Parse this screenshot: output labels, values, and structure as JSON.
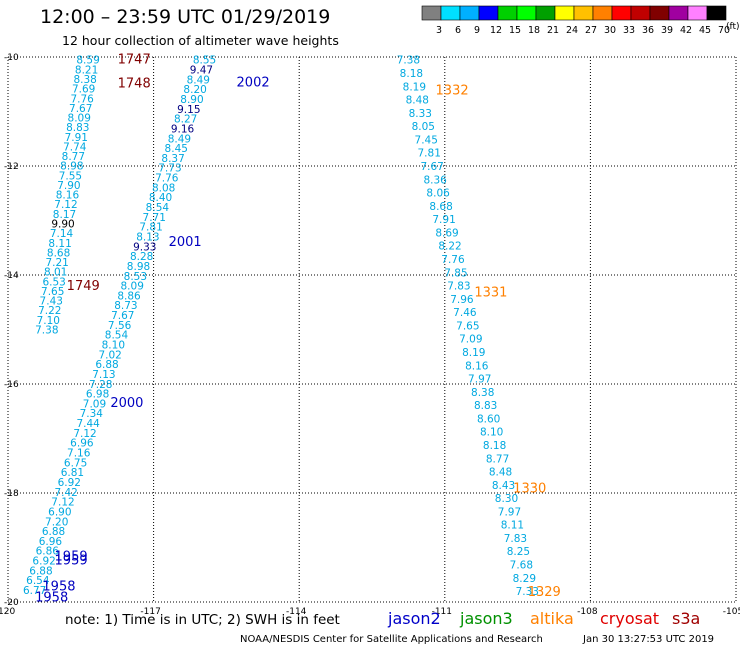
{
  "header": {
    "title": "12:00 – 23:59 UTC 01/29/2019",
    "subtitle": "12 hour collection of altimeter wave heights"
  },
  "legend": {
    "labels": [
      "3",
      "6",
      "9",
      "12",
      "15",
      "18",
      "21",
      "24",
      "27",
      "30",
      "33",
      "36",
      "39",
      "42",
      "45",
      "70"
    ],
    "unit": "(ft)",
    "colors": [
      "#808080",
      "#00e0ff",
      "#00b0ff",
      "#0000ff",
      "#00d000",
      "#00ff00",
      "#00a000",
      "#ffff00",
      "#ffc000",
      "#ff8000",
      "#ff0000",
      "#c00000",
      "#800000",
      "#a000a0",
      "#ff80ff",
      "#000000"
    ]
  },
  "note": "note:  1) Time is in UTC;  2) SWH is in feet",
  "satellites": [
    {
      "name": "jason2",
      "color": "#0000c8"
    },
    {
      "name": "jason3",
      "color": "#009000"
    },
    {
      "name": "altika",
      "color": "#ff8000"
    },
    {
      "name": "cryosat",
      "color": "#e00000"
    },
    {
      "name": "s3a",
      "color": "#a00000"
    }
  ],
  "footer": {
    "credit": "NOAA/NESDIS Center for Satellite Applications and Research",
    "timestamp": "Jan 30 13:27:53 UTC 2019"
  },
  "chart_data": {
    "type": "scatter",
    "xlim": [
      -120,
      -105
    ],
    "ylim": [
      -20,
      -10
    ],
    "x_ticks": [
      -120,
      -117,
      -114,
      -111,
      -108,
      -105
    ],
    "y_ticks": [
      -10,
      -12,
      -14,
      -16,
      -18,
      -20
    ],
    "x_tick_labels": [
      "-120",
      "-117",
      "-114",
      "-111",
      "-108",
      "-105"
    ],
    "y_tick_labels": [
      "-10",
      "-12",
      "-14",
      "-16",
      "-18",
      "-20"
    ],
    "grid": true,
    "tracks": [
      {
        "satellite": "jason2",
        "color": "#00a8e0",
        "x_start": -118.35,
        "y_start": -10.05,
        "x_end": -119.2,
        "y_end": -15.0,
        "values": [
          "8.59",
          "8.21",
          "8.38",
          "7.69",
          "7.76",
          "7.67",
          "8.09",
          "8.83",
          "7.91",
          "7.74",
          "8.77",
          "8.98",
          "7.55",
          "7.90",
          "8.16",
          "7.12",
          "8.17",
          "9.90",
          "7.14",
          "8.11",
          "8.68",
          "7.21",
          "8.01",
          "6.53",
          "7.65",
          "7.43",
          "7.22",
          "7.10",
          "7.38"
        ]
      },
      {
        "satellite": "jason2",
        "color": "#00a8e0",
        "x_start": -115.95,
        "y_start": -10.05,
        "x_end": -119.45,
        "y_end": -19.78,
        "values": [
          "8.55",
          "9.47",
          "8.49",
          "8.20",
          "8.90",
          "9.15",
          "8.27",
          "9.16",
          "8.49",
          "8.45",
          "8.37",
          "7.73",
          "7.76",
          "8.08",
          "8.40",
          "8.54",
          "7.71",
          "7.81",
          "8.13",
          "9.33",
          "8.28",
          "8.98",
          "8.53",
          "8.09",
          "8.86",
          "8.73",
          "7.67",
          "7.56",
          "8.54",
          "8.10",
          "7.02",
          "6.88",
          "7.13",
          "7.28",
          "6.98",
          "7.09",
          "7.34",
          "7.44",
          "7.12",
          "6.96",
          "7.16",
          "6.75",
          "6.81",
          "6.92",
          "7.42",
          "7.12",
          "6.90",
          "7.20",
          "6.88",
          "6.96",
          "6.86",
          "6.92",
          "6.88",
          "6.54",
          "6.77"
        ]
      },
      {
        "satellite": "jason2",
        "color": "#00a8e0",
        "x_start": -111.75,
        "y_start": -10.05,
        "x_end": -109.3,
        "y_end": -19.8,
        "values": [
          "7.38",
          "8.18",
          "8.19",
          "8.48",
          "8.33",
          "8.05",
          "7.45",
          "7.81",
          "7.67",
          "8.36",
          "8.06",
          "8.68",
          "7.91",
          "8.69",
          "8.22",
          "7.76",
          "7.85",
          "7.83",
          "7.96",
          "7.46",
          "7.65",
          "7.09",
          "8.19",
          "8.16",
          "7.97",
          "8.38",
          "8.83",
          "8.60",
          "8.10",
          "8.18",
          "8.77",
          "8.48",
          "8.43",
          "8.30",
          "7.97",
          "8.11",
          "7.83",
          "8.25",
          "7.68",
          "8.29",
          "7.33"
        ]
      }
    ],
    "highlights": [
      {
        "track": 0,
        "index": 17,
        "color": "#000000"
      },
      {
        "track": 1,
        "index": 1,
        "color": "#000080"
      },
      {
        "track": 1,
        "index": 5,
        "color": "#000080"
      },
      {
        "track": 1,
        "index": 7,
        "color": "#000080"
      },
      {
        "track": 1,
        "index": 19,
        "color": "#000080"
      }
    ],
    "time_labels": [
      {
        "text": "1747",
        "x": -117.4,
        "y": -10.03,
        "color": "#800000"
      },
      {
        "text": "1748",
        "x": -117.4,
        "y": -10.47,
        "color": "#800000"
      },
      {
        "text": "1749",
        "x": -118.45,
        "y": -14.18,
        "color": "#800000"
      },
      {
        "text": "2002",
        "x": -114.95,
        "y": -10.45,
        "color": "#0000c0"
      },
      {
        "text": "2001",
        "x": -116.35,
        "y": -13.38,
        "color": "#0000c0"
      },
      {
        "text": "2000",
        "x": -117.55,
        "y": -16.33,
        "color": "#0000c0"
      },
      {
        "text": "1959",
        "x": -118.7,
        "y": -19.15,
        "color": "#0000c0"
      },
      {
        "text": "1959",
        "x": -118.7,
        "y": -19.22,
        "color": "#0000c0"
      },
      {
        "text": "1958",
        "x": -118.95,
        "y": -19.7,
        "color": "#0000c0"
      },
      {
        "text": "1958",
        "x": -119.1,
        "y": -19.9,
        "color": "#0000c0"
      },
      {
        "text": "1332",
        "x": -110.85,
        "y": -10.6,
        "color": "#ff8000"
      },
      {
        "text": "1331",
        "x": -110.05,
        "y": -14.3,
        "color": "#ff8000"
      },
      {
        "text": "1330",
        "x": -109.25,
        "y": -17.9,
        "color": "#ff8000"
      },
      {
        "text": "1329",
        "x": -108.95,
        "y": -19.8,
        "color": "#ff8000"
      }
    ]
  }
}
